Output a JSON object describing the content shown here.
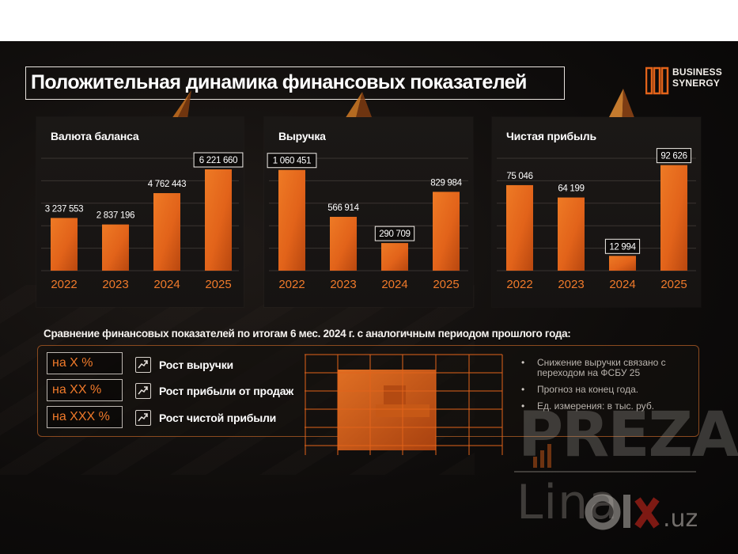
{
  "title": "Положительная динамика финансовых показателей",
  "logo": {
    "line1": "BUSINESS",
    "line2": "SYNERGY"
  },
  "colors": {
    "bar": "#e2631a",
    "bar_dark": "#b8470f",
    "accent": "#f07a2a",
    "highlight_border": "#f2eee9",
    "panel_bg": "#1a1715"
  },
  "chart_data": [
    {
      "type": "bar",
      "title": "Валюта баланса",
      "categories": [
        "2022",
        "2023",
        "2024",
        "2025"
      ],
      "values": [
        3237553,
        2837196,
        4762443,
        6221660
      ],
      "labels": [
        "3 237 553",
        "2 837 196",
        "4 762 443",
        "6 221 660"
      ],
      "highlighted": [
        false,
        false,
        false,
        true
      ],
      "grid": true,
      "ylim": [
        0,
        7000000
      ]
    },
    {
      "type": "bar",
      "title": "Выручка",
      "categories": [
        "2022",
        "2023",
        "2024",
        "2025"
      ],
      "values": [
        1060451,
        566914,
        290709,
        829984
      ],
      "labels": [
        "1 060 451",
        "566 914",
        "290 709",
        "829 984"
      ],
      "highlighted": [
        true,
        false,
        true,
        false
      ],
      "grid": true,
      "ylim": [
        0,
        1200000
      ]
    },
    {
      "type": "bar",
      "title": "Чистая прибыль",
      "categories": [
        "2022",
        "2023",
        "2024",
        "2025"
      ],
      "values": [
        75046,
        64199,
        12994,
        92626
      ],
      "labels": [
        "75 046",
        "64 199",
        "12 994",
        "92 626"
      ],
      "highlighted": [
        false,
        false,
        true,
        true
      ],
      "grid": true,
      "ylim": [
        0,
        100000
      ]
    }
  ],
  "comparison": {
    "heading": "Сравнение финансовых показателей по итогам 6 мес. 2024 г. с аналогичным периодом прошлого года:",
    "items": [
      {
        "value": "на X %",
        "label": "Рост выручки",
        "icon": "trend-up-icon"
      },
      {
        "value": "на XX %",
        "label": "Рост прибыли от продаж",
        "icon": "trend-up-icon"
      },
      {
        "value": "на XXX %",
        "label": "Рост чистой прибыли",
        "icon": "trend-up-icon"
      }
    ],
    "notes": [
      "Снижение выручки связано с переходом на ФСБУ 25",
      "Прогноз на конец года.",
      "Ед. измерения: в тыс. руб."
    ]
  },
  "watermark": {
    "brand": "PREZA",
    "sub": "Lina",
    "site": "olx.uz"
  }
}
